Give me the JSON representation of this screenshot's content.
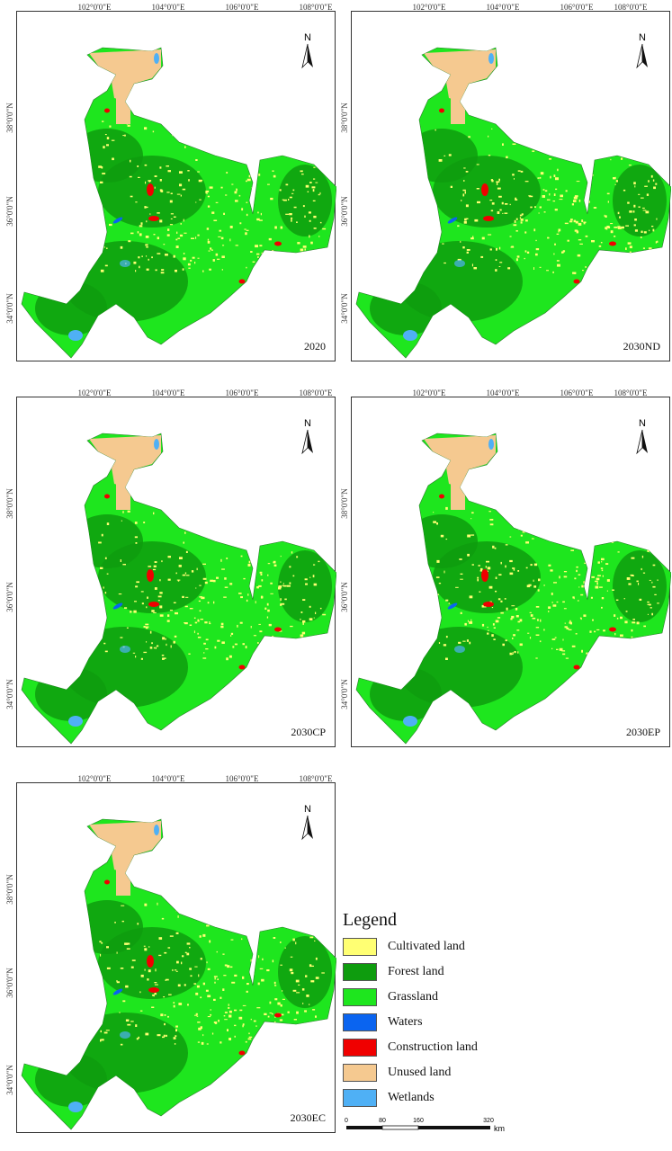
{
  "lon_labels": [
    "102°0'0\"E",
    "104°0'0\"E",
    "106°0'0\"E",
    "108°0'0\"E"
  ],
  "lat_labels": [
    "38°0'0\"N",
    "36°0'0\"N",
    "34°0'0\"N"
  ],
  "north_label": "N",
  "panels": [
    {
      "title": "2020"
    },
    {
      "title": "2030ND"
    },
    {
      "title": "2030CP"
    },
    {
      "title": "2030EP"
    },
    {
      "title": "2030EC"
    }
  ],
  "legend": {
    "title": "Legend",
    "items": [
      {
        "label": "Cultivated land",
        "color": "#ffff73"
      },
      {
        "label": "Forest land",
        "color": "#0e9c0e"
      },
      {
        "label": "Grassland",
        "color": "#1ee61e"
      },
      {
        "label": "Waters",
        "color": "#0a64f0"
      },
      {
        "label": "Construction land",
        "color": "#f00000"
      },
      {
        "label": "Unused land",
        "color": "#f5c990"
      },
      {
        "label": "Wetlands",
        "color": "#4fb0f5"
      }
    ]
  },
  "scale": {
    "ticks": [
      "0",
      "80",
      "160",
      "320"
    ],
    "unit": "km"
  }
}
